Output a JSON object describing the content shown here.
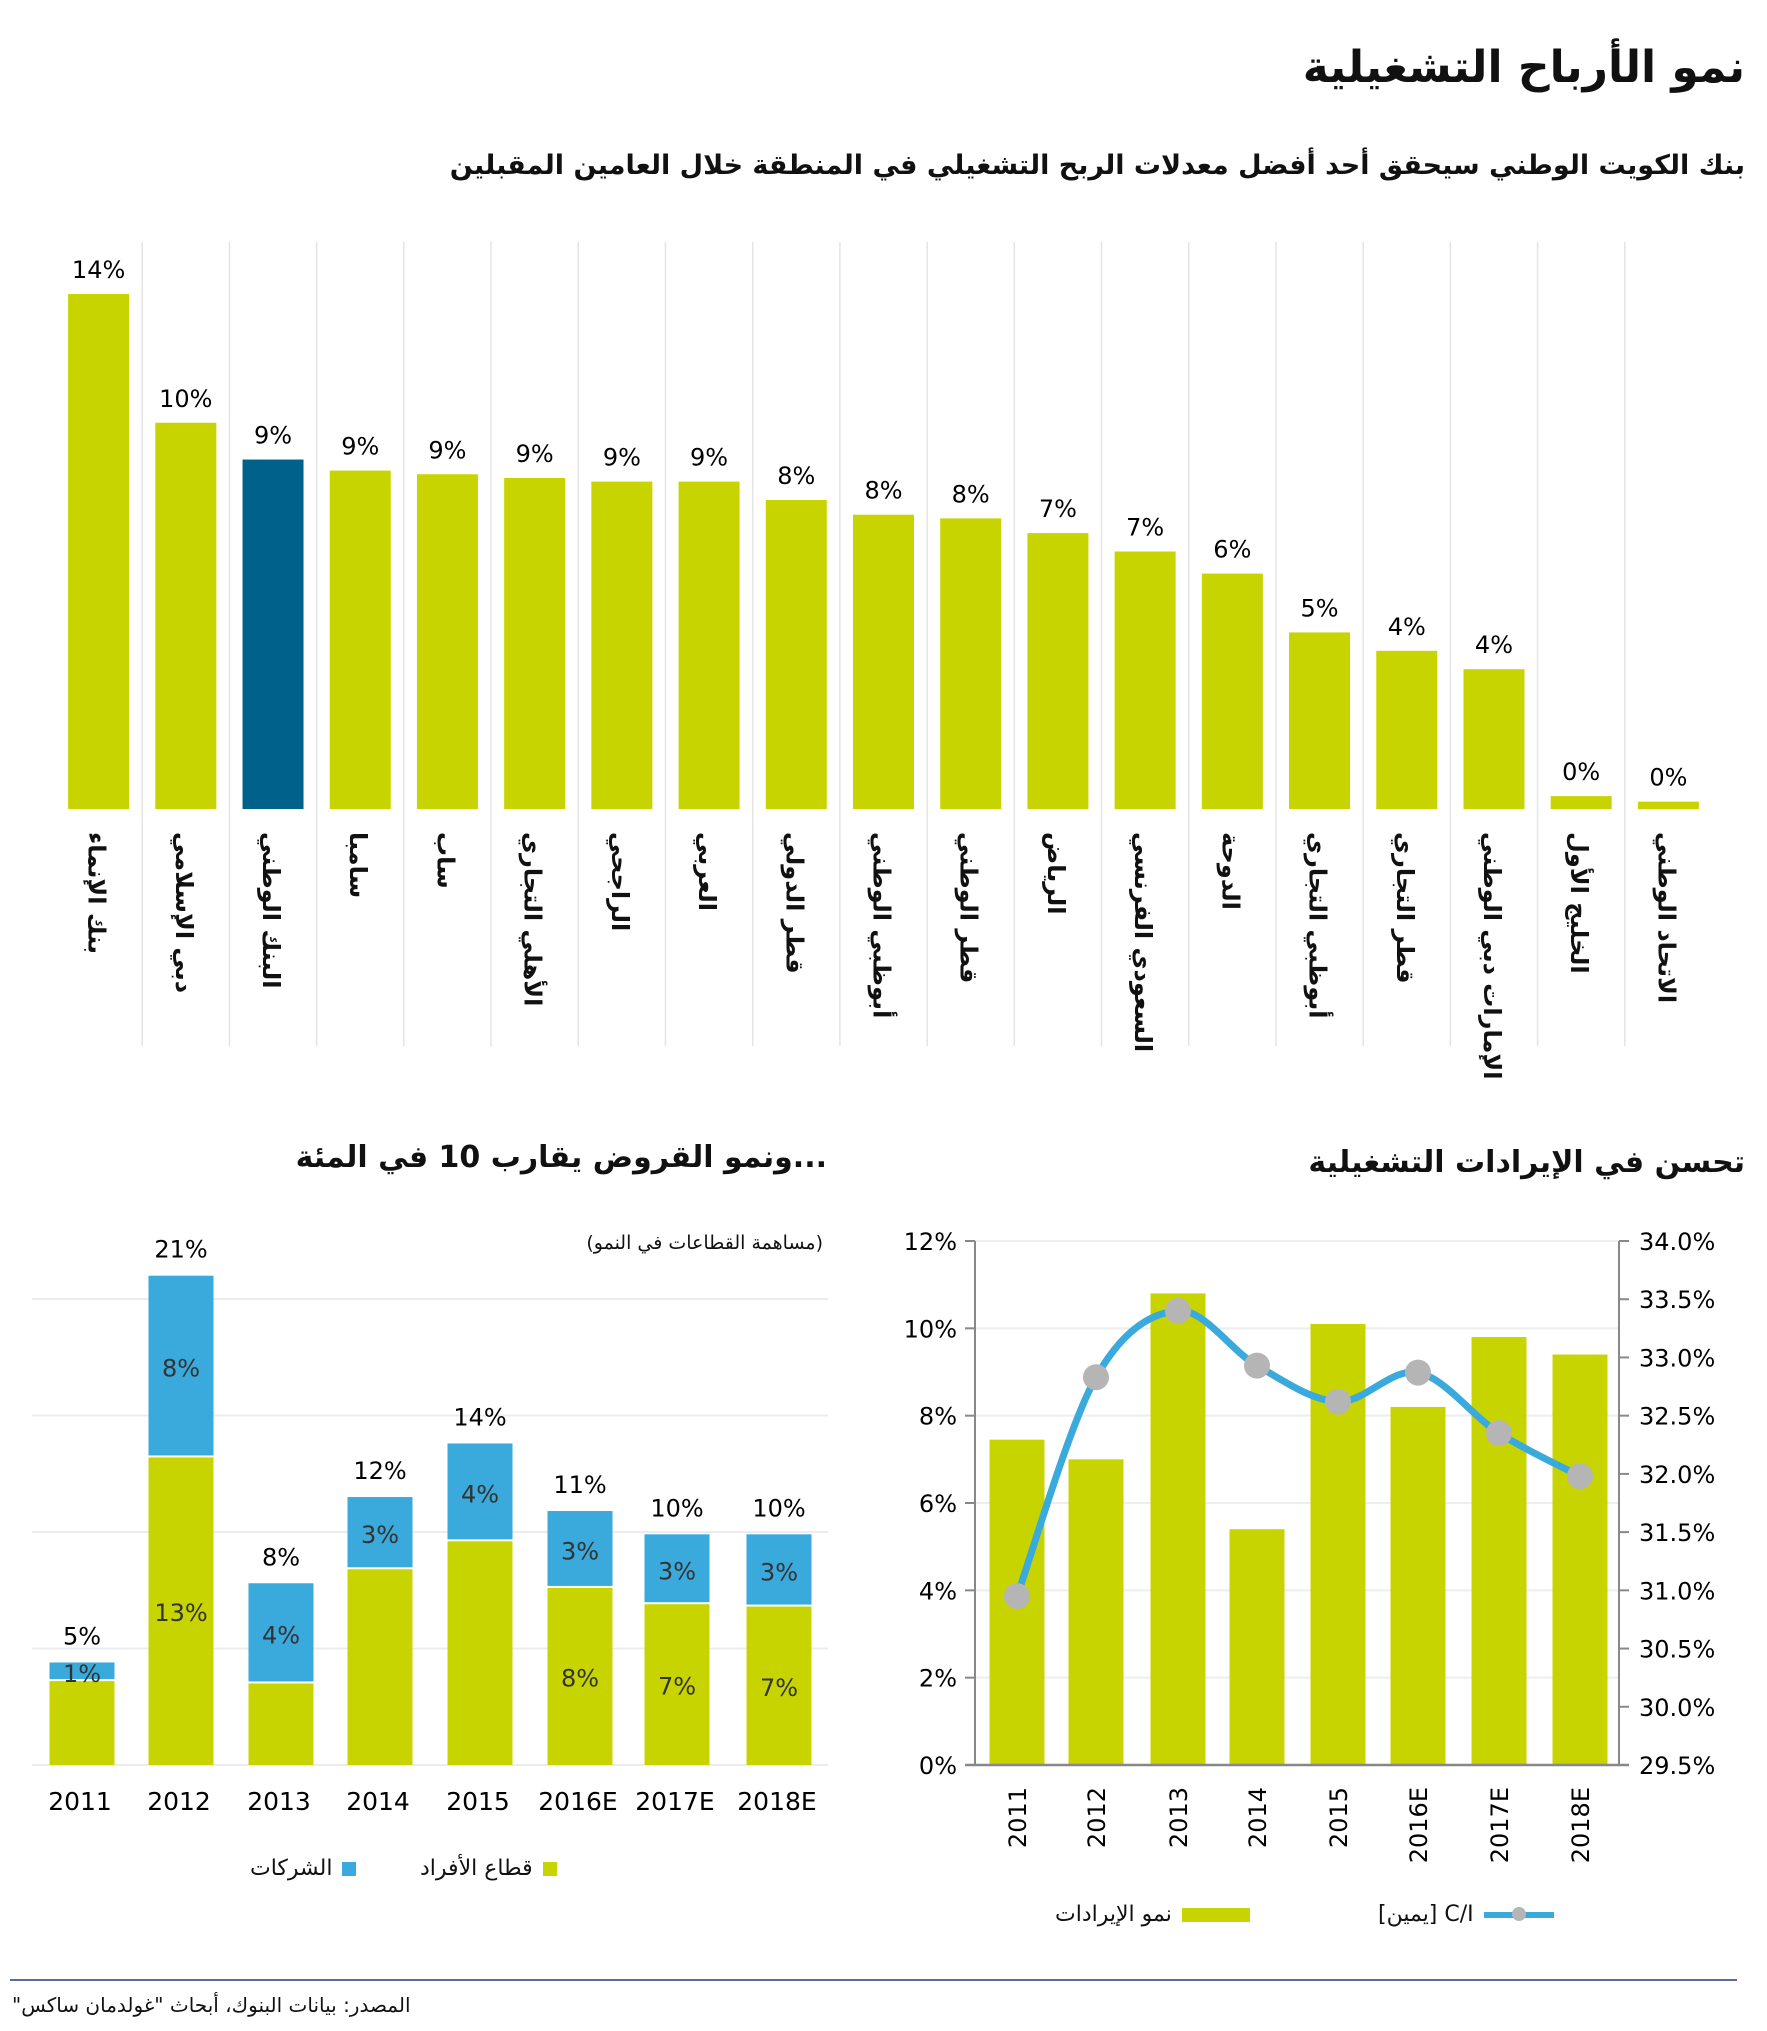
{
  "title": "نمو الأرباح التشغيلية",
  "subtitle": "بنك الكويت الوطني سيحقق أحد أفضل معدلات الربح التشغيلي في المنطقة خلال العامين المقبلين",
  "source": "المصدر: بيانات البنوك، أبحاث \"غولدمان ساكس\"",
  "colors": {
    "bar": "#c8d400",
    "highlight": "#00628b",
    "corporate": "#3aa9dc",
    "line": "#3aa9dc",
    "marker": "#b5b5b5"
  },
  "chart_data": [
    {
      "type": "bar",
      "title": "بنك الكويت الوطني سيحقق أحد أفضل معدلات الربح التشغيلي في المنطقة خلال العامين المقبلين",
      "categories": [
        "بنك الإنماء",
        "دبي الإسلامي",
        "البنك الوطني",
        "سامبا",
        "ساب",
        "الأهلي التجاري",
        "الراجحي",
        "العربي",
        "قطر الدولي",
        "أبوظبي الوطني",
        "قطر الوطني",
        "الرياض",
        "السعودي الفرنسي",
        "الدوحة",
        "أبوظبي التجاري",
        "قطر التجاري",
        "الإمارات دبي الوطني",
        "الخليج الأول",
        "الاتحاد الوطني"
      ],
      "values": [
        14.0,
        10.5,
        9.5,
        9.2,
        9.1,
        9.0,
        8.9,
        8.9,
        8.4,
        8.0,
        7.9,
        7.5,
        7.0,
        6.4,
        4.8,
        4.3,
        3.8,
        0.35,
        0.2
      ],
      "data_labels": [
        "14%",
        "10%",
        "9%",
        "9%",
        "9%",
        "9%",
        "9%",
        "9%",
        "8%",
        "8%",
        "8%",
        "7%",
        "7%",
        "6%",
        "5%",
        "4%",
        "4%",
        "0%",
        "0%"
      ],
      "highlight_index": 2,
      "ylim": [
        0,
        14
      ],
      "grid": false
    },
    {
      "type": "bar",
      "stacked": true,
      "title": "...ونمو القروض يقارب 10 في المئة",
      "subtitle": "(مساهمة القطاعات في النمو)",
      "categories": [
        "2011",
        "2012",
        "2013",
        "2014",
        "2015",
        "2016E",
        "2017E",
        "2018E"
      ],
      "series": [
        {
          "name": "قطاع الأفراد",
          "values": [
            3.6,
            13.2,
            3.5,
            8.4,
            9.6,
            7.6,
            6.9,
            6.8
          ],
          "labels": [
            "",
            "13%",
            "",
            "",
            "",
            "8%",
            "7%",
            "7%"
          ]
        },
        {
          "name": "الشركات",
          "values": [
            0.8,
            7.8,
            4.3,
            3.1,
            4.2,
            3.3,
            3.0,
            3.1
          ],
          "labels": [
            "1%",
            "8%",
            "4%",
            "3%",
            "4%",
            "3%",
            "3%",
            "3%"
          ]
        }
      ],
      "total_labels": [
        "5%",
        "21%",
        "8%",
        "12%",
        "14%",
        "11%",
        "10%",
        "10%"
      ],
      "ylim": [
        0,
        22
      ],
      "grid": true,
      "legend": "bottom"
    },
    {
      "type": "bar+line",
      "title": "تحسن في الإيرادات التشغيلية",
      "categories": [
        "2011",
        "2012",
        "2013",
        "2014",
        "2015",
        "2016E",
        "2017E",
        "2018E"
      ],
      "series": [
        {
          "name": "نمو الإيرادات",
          "type": "bar",
          "axis": "left",
          "values": [
            7.45,
            7.0,
            10.8,
            5.4,
            10.1,
            8.2,
            9.8,
            9.4
          ]
        },
        {
          "name": "C/I [يمين]",
          "type": "line",
          "axis": "right",
          "values": [
            30.95,
            32.83,
            33.4,
            32.93,
            32.62,
            32.87,
            32.35,
            31.98
          ]
        }
      ],
      "left_axis": {
        "ylim": [
          0,
          12
        ],
        "ticks": [
          "0%",
          "2%",
          "4%",
          "6%",
          "8%",
          "10%",
          "12%"
        ]
      },
      "right_axis": {
        "ylim": [
          29.5,
          34.0
        ],
        "ticks": [
          "29.5%",
          "30.0%",
          "30.5%",
          "31.0%",
          "31.5%",
          "32.0%",
          "32.5%",
          "33.0%",
          "33.5%",
          "34.0%"
        ]
      },
      "grid": true,
      "legend": "bottom"
    }
  ]
}
